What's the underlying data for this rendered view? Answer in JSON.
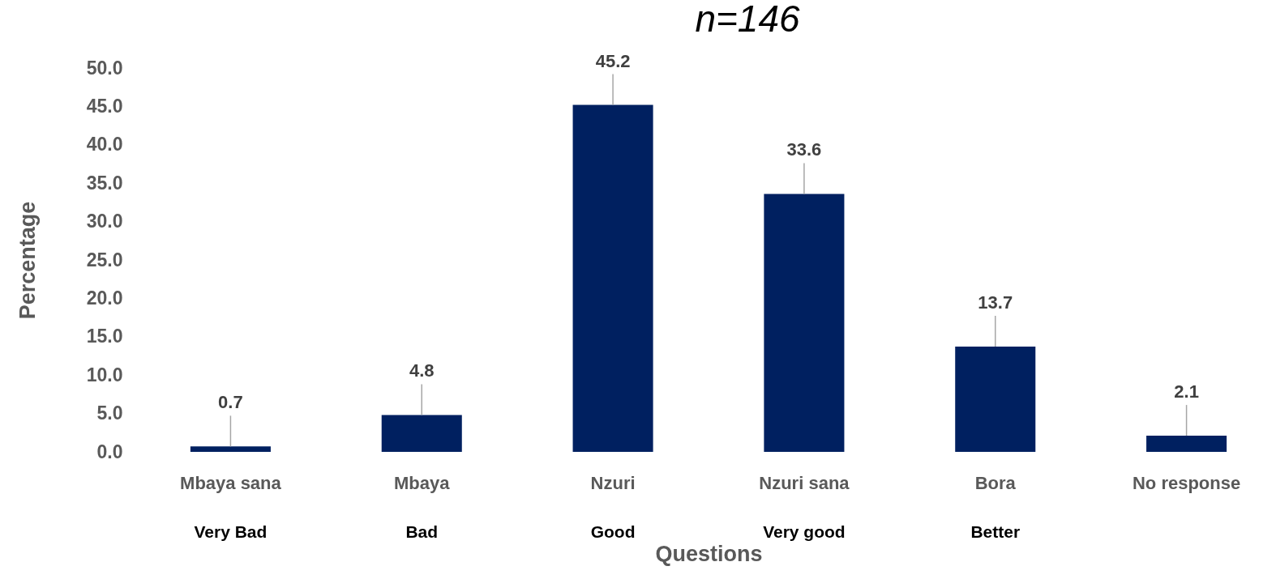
{
  "chart_data": {
    "type": "bar",
    "title": "n=146",
    "xlabel": "Questions",
    "ylabel": "Percentage",
    "categories": [
      "Mbaya sana",
      "Mbaya",
      "Nzuri",
      "Nzuri sana",
      "Bora",
      "No response"
    ],
    "values": [
      0.7,
      4.8,
      45.2,
      33.6,
      13.7,
      2.1
    ],
    "color": "#002060",
    "data_labels": true,
    "grid": false,
    "ylim": [
      0,
      50
    ],
    "yticks": [
      {
        "value": 0,
        "label": "0.0"
      },
      {
        "value": 5,
        "label": "5.0"
      },
      {
        "value": 10,
        "label": "10.0"
      },
      {
        "value": 15,
        "label": "15.0"
      },
      {
        "value": 20,
        "label": "20.0"
      },
      {
        "value": 25,
        "label": "25.0"
      },
      {
        "value": 30,
        "label": "30.0"
      },
      {
        "value": 35,
        "label": "35.0"
      },
      {
        "value": 40,
        "label": "40.0"
      },
      {
        "value": 45,
        "label": "45.0"
      },
      {
        "value": 50,
        "label": "50.0"
      }
    ],
    "annotations": [
      "Very Bad",
      "Bad",
      "Good",
      "Very good",
      "Better"
    ]
  }
}
